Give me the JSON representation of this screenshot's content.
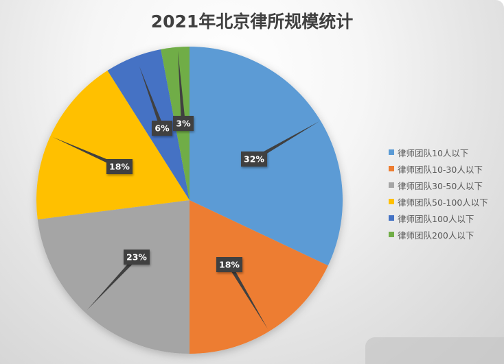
{
  "chart_data": {
    "type": "pie",
    "title": "2021年北京律所规模统计",
    "categories": [
      "律师团队10人以下",
      "律师团队10-30人以下",
      "律师团队30-50人以下",
      "律师团队50-100人以下",
      "律师团队100人以下",
      "律师团队200人以下"
    ],
    "values": [
      32,
      18,
      23,
      18,
      6,
      3
    ],
    "labels": [
      "32%",
      "18%",
      "23%",
      "18%",
      "6%",
      "3%"
    ],
    "colors": [
      "#5B9BD5",
      "#ED7D31",
      "#A5A5A5",
      "#FFC000",
      "#4472C4",
      "#70AD47"
    ],
    "start_angle": "12 o'clock, clockwise",
    "legend_position": "right",
    "data_label_style": "dark callout boxes with leader lines"
  },
  "title": "2021年北京律所规模统计",
  "legend": {
    "items": [
      {
        "label": "律师团队10人以下",
        "color": "#5B9BD5"
      },
      {
        "label": "律师团队10-30人以下",
        "color": "#ED7D31"
      },
      {
        "label": "律师团队30-50人以下",
        "color": "#A5A5A5"
      },
      {
        "label": "律师团队50-100人以下",
        "color": "#FFC000"
      },
      {
        "label": "律师团队100人以下",
        "color": "#4472C4"
      },
      {
        "label": "律师团队200人以下",
        "color": "#70AD47"
      }
    ]
  }
}
